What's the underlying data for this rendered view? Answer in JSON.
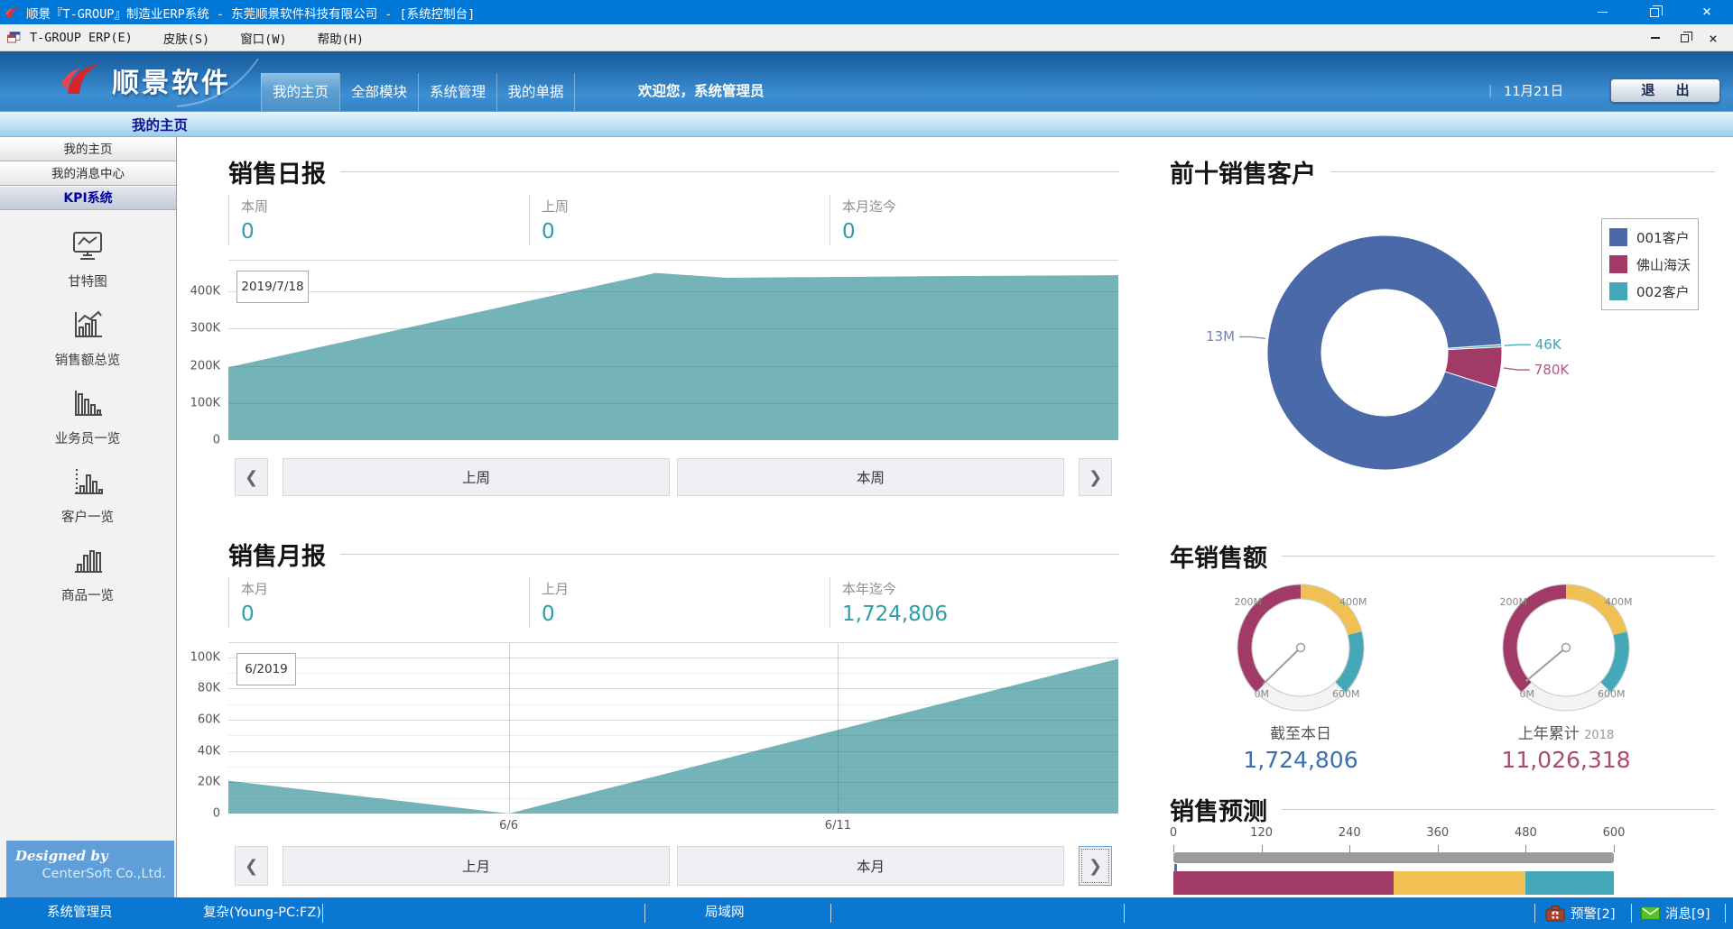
{
  "window": {
    "title": "顺景『T-GROUP』制造业ERP系统 - 东莞顺景软件科技有限公司 - [系统控制台]",
    "controls": [
      "minimize",
      "restore",
      "close"
    ]
  },
  "menubar": {
    "items": [
      "T-GROUP ERP(E)",
      "皮肤(S)",
      "窗口(W)",
      "帮助(H)"
    ],
    "mdi_controls": [
      "minimize",
      "restore",
      "close"
    ]
  },
  "header": {
    "logo_text": "顺景软件",
    "tabs": [
      {
        "label": "我的主页",
        "active": true
      },
      {
        "label": "全部模块",
        "active": false
      },
      {
        "label": "系统管理",
        "active": false
      },
      {
        "label": "我的单据",
        "active": false
      }
    ],
    "welcome": "欢迎您，系统管理员",
    "divider": "｜",
    "date": "11月21日",
    "exit_label": "退 出"
  },
  "subtab": {
    "label": "我的主页"
  },
  "sidebar": {
    "nav": [
      {
        "label": "我的主页",
        "active": false
      },
      {
        "label": "我的消息中心",
        "active": false
      },
      {
        "label": "KPI系统",
        "active": true
      }
    ],
    "kpi_items": [
      {
        "label": "甘特图",
        "icon": "gantt-chart-icon"
      },
      {
        "label": "销售额总览",
        "icon": "sales-overview-icon"
      },
      {
        "label": "业务员一览",
        "icon": "salesman-list-icon"
      },
      {
        "label": "客户一览",
        "icon": "customer-list-icon"
      },
      {
        "label": "商品一览",
        "icon": "product-list-icon"
      }
    ],
    "designed_by": "Designed by",
    "company": "CenterSoft Co.,Ltd."
  },
  "daily": {
    "title": "销售日报",
    "stats": [
      {
        "label": "本周",
        "value": "0"
      },
      {
        "label": "上周",
        "value": "0"
      },
      {
        "label": "本月迄今",
        "value": "0"
      }
    ],
    "nav": {
      "prev": "❮",
      "left": "上周",
      "right": "本周",
      "next": "❯"
    }
  },
  "monthly": {
    "title": "销售月报",
    "stats": [
      {
        "label": "本月",
        "value": "0"
      },
      {
        "label": "上月",
        "value": "0"
      },
      {
        "label": "本年迄今",
        "value": "1,724,806"
      }
    ],
    "nav": {
      "prev": "❮",
      "left": "上月",
      "right": "本月",
      "next": "❯"
    }
  },
  "customers": {
    "title": "前十销售客户",
    "legend": [
      {
        "label": "001客户",
        "color": "#4a69a8"
      },
      {
        "label": "佛山海沃",
        "color": "#a23a68"
      },
      {
        "label": "002客户",
        "color": "#44a8b8"
      }
    ]
  },
  "annual": {
    "title": "年销售额",
    "gauges": [
      {
        "label": "截至本日",
        "year": "",
        "value": "1,724,806",
        "value_color": "#3c6fae"
      },
      {
        "label": "上年累计",
        "year": "2018",
        "value": "11,026,318",
        "value_color": "#ad4a71"
      }
    ]
  },
  "forecast": {
    "title": "销售预测"
  },
  "statusbar": {
    "user": "系统管理员",
    "machine": "复杂(Young-PC:FZ)",
    "network": "局域网",
    "alert_label": "预警[2]",
    "alert_icon": "first-aid-kit-icon",
    "message_label": "消息[9]",
    "message_icon": "envelope-icon"
  },
  "chart_data": [
    {
      "id": "daily-chart",
      "type": "area",
      "title": "销售日报",
      "tooltip": "2019/7/18",
      "color": "#74b3b7",
      "ylim": 483,
      "yticks": [
        {
          "label": "400K",
          "v": 400
        },
        {
          "label": "300K",
          "v": 300
        },
        {
          "label": "200K",
          "v": 200
        },
        {
          "label": "100K",
          "v": 100
        },
        {
          "label": "0",
          "v": 0
        }
      ],
      "points": [
        [
          0,
          196
        ],
        [
          48,
          450
        ],
        [
          56,
          437
        ],
        [
          78,
          441
        ],
        [
          100,
          444
        ]
      ],
      "unit": "K"
    },
    {
      "id": "monthly-chart",
      "type": "area",
      "title": "销售月报",
      "tooltip": "6/2019",
      "color": "#74b3b7",
      "ylim": 109,
      "yticks": [
        {
          "label": "100K",
          "v": 100
        },
        {
          "label": "80K",
          "v": 80
        },
        {
          "label": "60K",
          "v": 60
        },
        {
          "label": "40K",
          "v": 40
        },
        {
          "label": "20K",
          "v": 20
        },
        {
          "label": "0",
          "v": 0
        }
      ],
      "minor": [
        10,
        30,
        50,
        70,
        90
      ],
      "xticks": [
        {
          "label": "6/6",
          "pos": 31.5
        },
        {
          "label": "6/11",
          "pos": 68.5
        }
      ],
      "points": [
        [
          0,
          21
        ],
        [
          31.5,
          0
        ],
        [
          100,
          99
        ]
      ],
      "unit": "K"
    },
    {
      "id": "cust-donut",
      "type": "donut",
      "title": "前十销售客户",
      "start_angle": -4,
      "slices": [
        {
          "name": "002客户",
          "value": 46000,
          "label": "46K",
          "color": "#44a8b8",
          "label_color": "#3ba4b4"
        },
        {
          "name": "佛山海沃",
          "value": 780000,
          "label": "780K",
          "color": "#a23a68",
          "label_color": "#a85b84"
        },
        {
          "name": "001客户",
          "value": 13000000,
          "label": "13M",
          "color": "#4a69a8",
          "label_color": "#7187b5"
        }
      ]
    },
    {
      "id": "gauge-a",
      "type": "gauge",
      "label": "截至本日",
      "value_num": 1.72,
      "range": [
        0,
        600
      ],
      "segments": [
        {
          "from": 0,
          "to": 300,
          "color": "#a23a68"
        },
        {
          "from": 300,
          "to": 467,
          "color": "#f0c052"
        },
        {
          "from": 467,
          "to": 600,
          "color": "#44a8b8"
        }
      ],
      "ticks": [
        {
          "label": "0M",
          "corner": "bl"
        },
        {
          "label": "200M",
          "corner": "tl"
        },
        {
          "label": "400M",
          "corner": "tr"
        },
        {
          "label": "600M",
          "corner": "br"
        }
      ]
    },
    {
      "id": "gauge-b",
      "type": "gauge",
      "label": "上年累计 2018",
      "value_num": 11.03,
      "range": [
        0,
        600
      ],
      "segments": [
        {
          "from": 0,
          "to": 300,
          "color": "#a23a68"
        },
        {
          "from": 300,
          "to": 467,
          "color": "#f0c052"
        },
        {
          "from": 467,
          "to": 600,
          "color": "#44a8b8"
        }
      ],
      "ticks": [
        {
          "label": "0M",
          "corner": "bl"
        },
        {
          "label": "200M",
          "corner": "tl"
        },
        {
          "label": "400M",
          "corner": "tr"
        },
        {
          "label": "600M",
          "corner": "br"
        }
      ]
    },
    {
      "id": "forecast-bullet",
      "type": "bullet",
      "title": "销售预测",
      "range": [
        0,
        600
      ],
      "axis_ticks": [
        0,
        120,
        240,
        360,
        480,
        600
      ],
      "marker_value": 2,
      "segments": [
        {
          "from": 0,
          "to": 300,
          "color": "#a23a68"
        },
        {
          "from": 300,
          "to": 480,
          "color": "#f0c052"
        },
        {
          "from": 480,
          "to": 600,
          "color": "#44a8b8"
        }
      ]
    }
  ]
}
